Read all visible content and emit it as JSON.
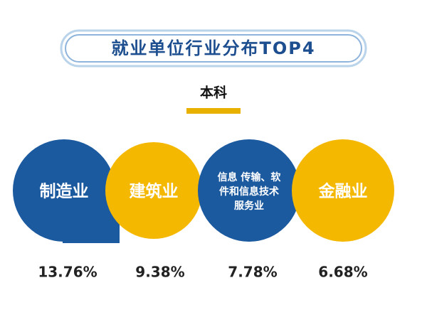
{
  "header": {
    "title": "就业单位行业分布TOP4",
    "subtitle": "本科"
  },
  "items": [
    {
      "lines": [
        "制造业"
      ],
      "value": "13.76%"
    },
    {
      "lines": [
        "建筑业"
      ],
      "value": "9.38%"
    },
    {
      "lines": [
        "信息 传输、软",
        "件和信息技术",
        "服务业"
      ],
      "value": "7.78%"
    },
    {
      "lines": [
        "金融业"
      ],
      "value": "6.68%"
    }
  ]
}
